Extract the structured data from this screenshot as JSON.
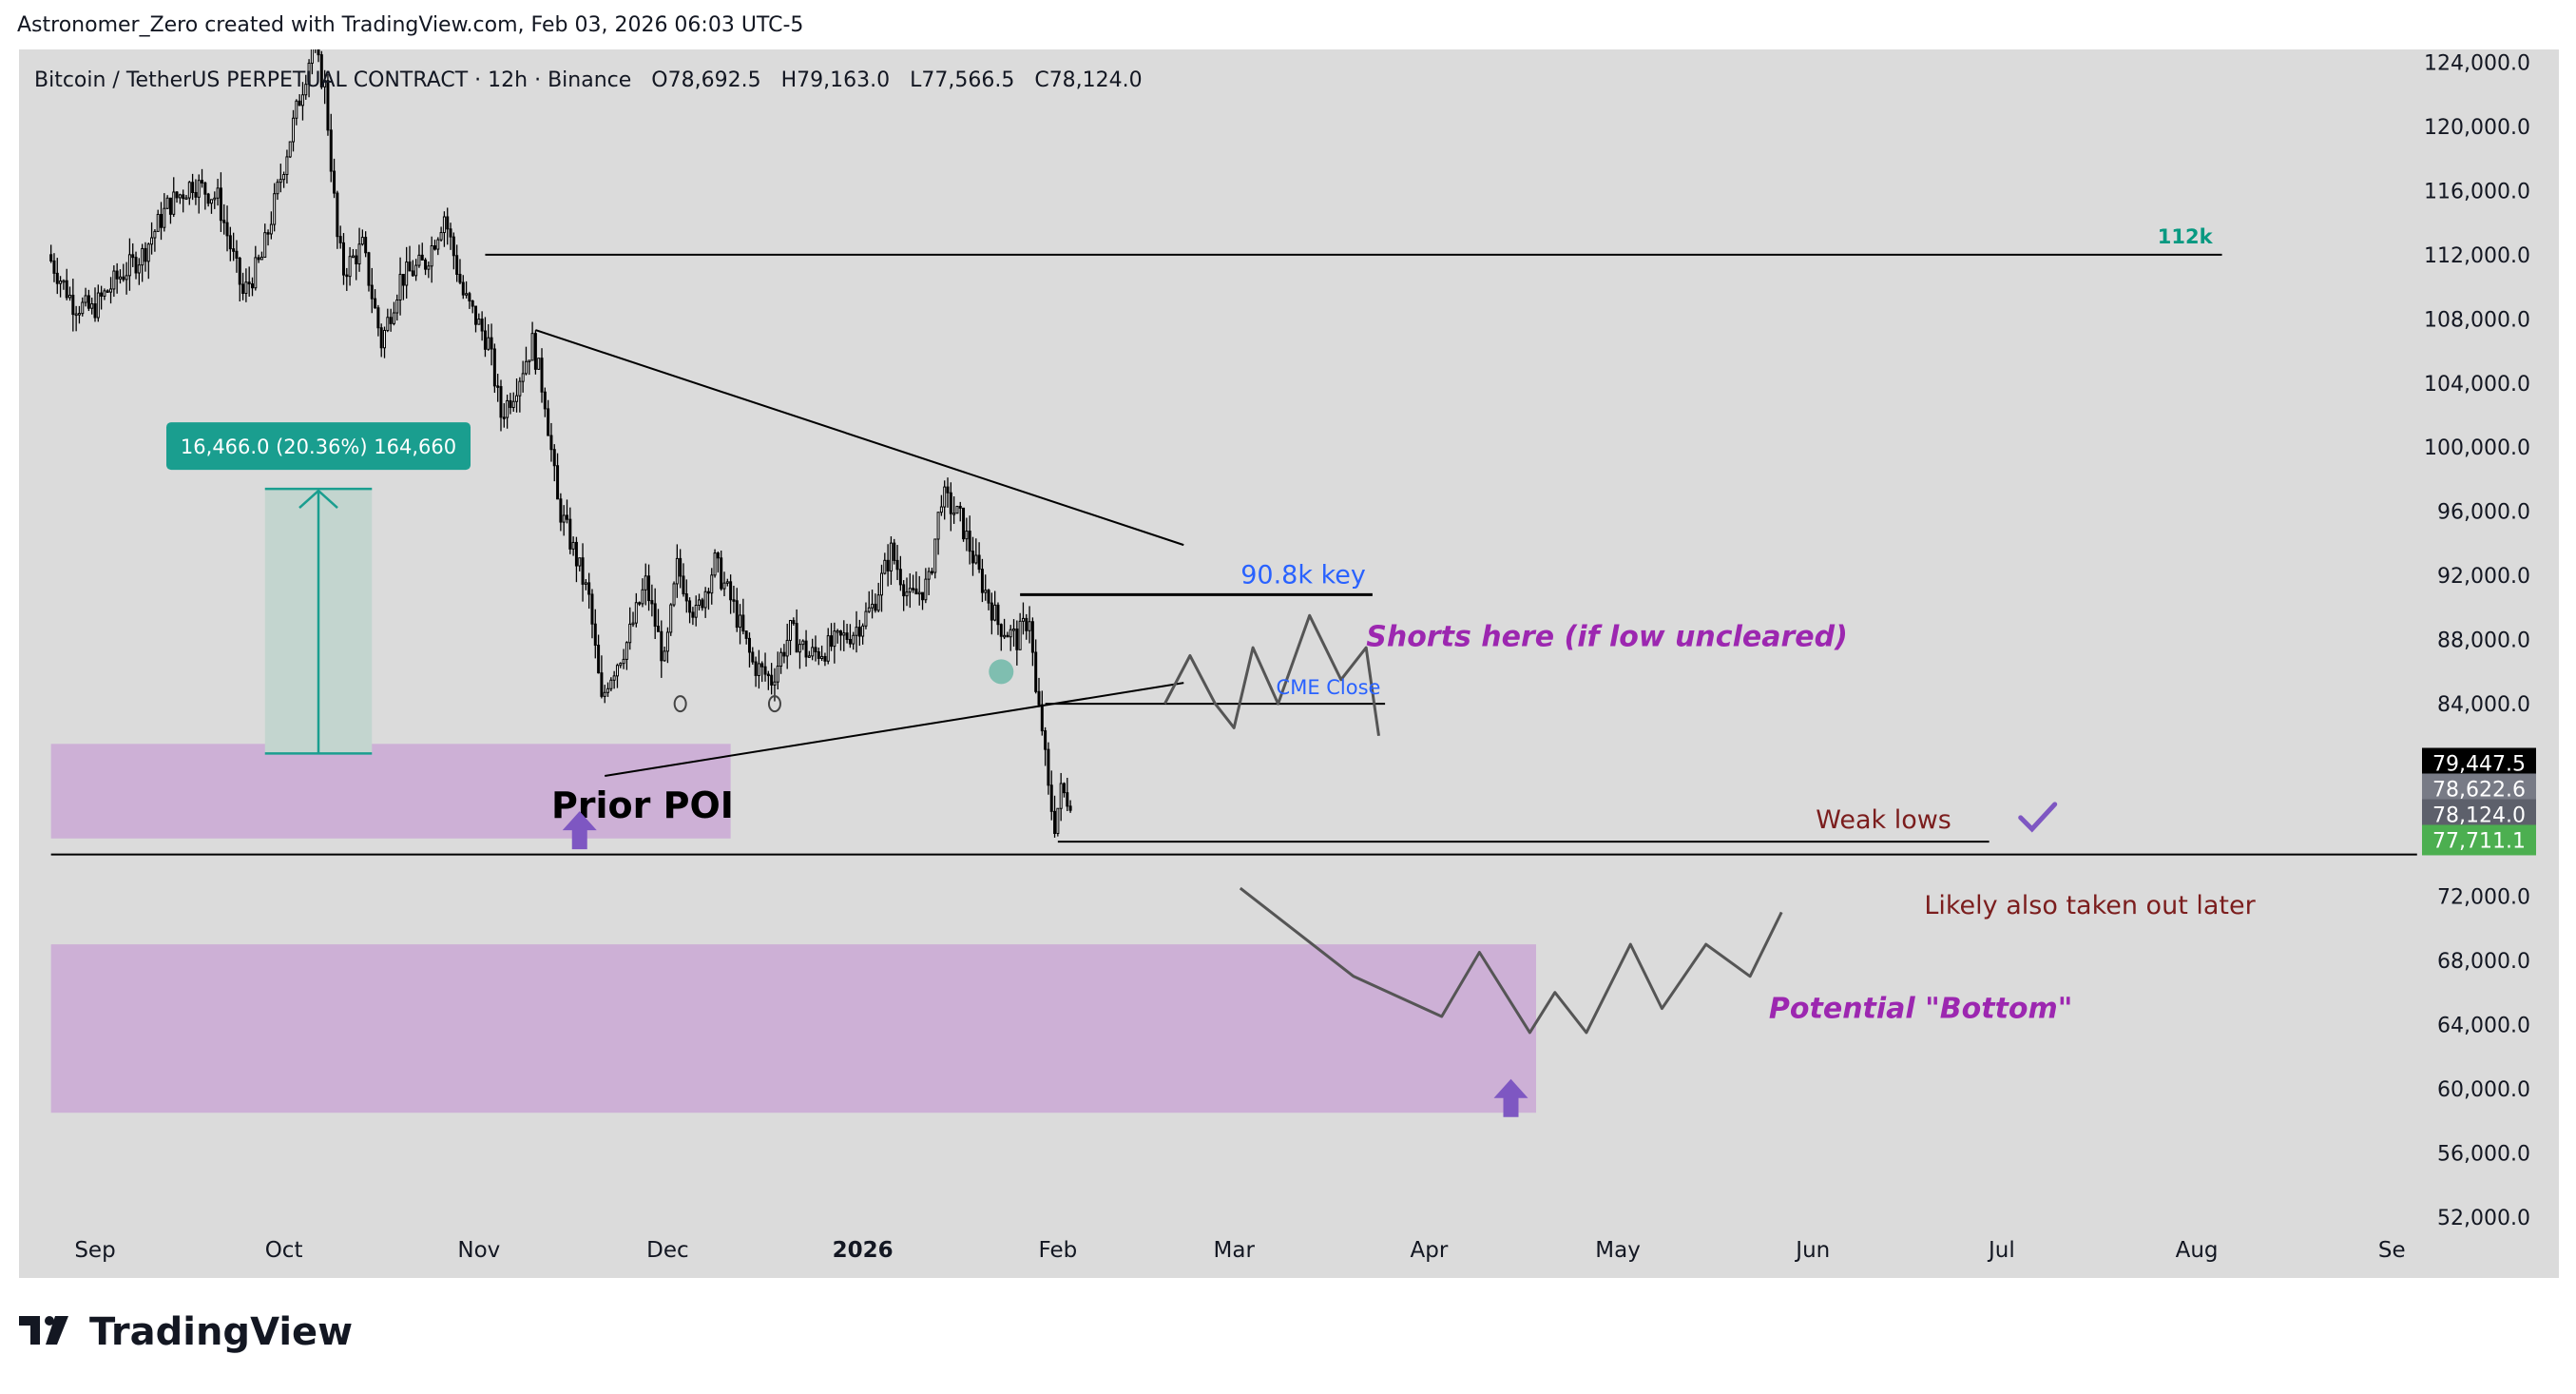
{
  "header": {
    "attribution": "Astronomer_Zero created with TradingView.com, Feb 03, 2026 06:03 UTC-5"
  },
  "brand": {
    "name": "TradingView",
    "logo_icon": "tradingview-logo-icon"
  },
  "chart_data": {
    "type": "candlestick",
    "symbol": "Bitcoin / TetherUS PERPETUAL CONTRACT",
    "interval": "12h",
    "exchange": "Binance",
    "legend_text": "Bitcoin / TetherUS PERPETUAL CONTRACT · 12h · Binance",
    "ohlc": {
      "open": "O78,692.5",
      "high": "H79,163.0",
      "low": "L77,566.5",
      "close": "C78,124.0"
    },
    "x_ticks": [
      "Sep",
      "Oct",
      "Nov",
      "Dec",
      "2026",
      "Feb",
      "Mar",
      "Apr",
      "May",
      "Jun",
      "Jul",
      "Aug",
      "Se"
    ],
    "y_ticks": [
      124000,
      120000,
      116000,
      112000,
      108000,
      104000,
      100000,
      96000,
      92000,
      88000,
      84000,
      80000,
      76000,
      72000,
      68000,
      64000,
      60000,
      56000,
      52000
    ],
    "y_tick_labels": [
      "124,000.0",
      "120,000.0",
      "116,000.0",
      "112,000.0",
      "108,000.0",
      "104,000.0",
      "100,000.0",
      "96,000.0",
      "92,000.0",
      "88,000.0",
      "84,000.0",
      "",
      "",
      "72,000.0",
      "68,000.0",
      "64,000.0",
      "60,000.0",
      "56,000.0",
      "52,000.0"
    ],
    "ylim": [
      49500,
      124500
    ],
    "price_path": [
      [
        "2025-08-25",
        112000
      ],
      [
        "2025-08-29",
        109000
      ],
      [
        "2025-09-01",
        108500
      ],
      [
        "2025-09-05",
        110500
      ],
      [
        "2025-09-09",
        112000
      ],
      [
        "2025-09-13",
        115000
      ],
      [
        "2025-09-17",
        116500
      ],
      [
        "2025-09-21",
        115500
      ],
      [
        "2025-09-25",
        109500
      ],
      [
        "2025-09-28",
        111800
      ],
      [
        "2025-10-02",
        118500
      ],
      [
        "2025-10-06",
        125000
      ],
      [
        "2025-10-08",
        122500
      ],
      [
        "2025-10-10",
        113000
      ],
      [
        "2025-10-11",
        111000
      ],
      [
        "2025-10-14",
        112500
      ],
      [
        "2025-10-17",
        106500
      ],
      [
        "2025-10-20",
        110500
      ],
      [
        "2025-10-24",
        111500
      ],
      [
        "2025-10-27",
        114500
      ],
      [
        "2025-10-30",
        109500
      ],
      [
        "2025-11-03",
        106500
      ],
      [
        "2025-11-05",
        102000
      ],
      [
        "2025-11-07",
        103500
      ],
      [
        "2025-11-10",
        106500
      ],
      [
        "2025-11-12",
        103000
      ],
      [
        "2025-11-14",
        96500
      ],
      [
        "2025-11-17",
        93000
      ],
      [
        "2025-11-19",
        90500
      ],
      [
        "2025-11-21",
        84000
      ],
      [
        "2025-11-22",
        85500
      ],
      [
        "2025-11-25",
        87800
      ],
      [
        "2025-11-28",
        91500
      ],
      [
        "2025-12-01",
        86500
      ],
      [
        "2025-12-03",
        92500
      ],
      [
        "2025-12-06",
        89500
      ],
      [
        "2025-12-09",
        92800
      ],
      [
        "2025-12-12",
        90000
      ],
      [
        "2025-12-15",
        86500
      ],
      [
        "2025-12-18",
        85500
      ],
      [
        "2025-12-21",
        88500
      ],
      [
        "2025-12-24",
        87000
      ],
      [
        "2025-12-27",
        87500
      ],
      [
        "2025-12-31",
        88500
      ],
      [
        "2026-01-03",
        90000
      ],
      [
        "2026-01-06",
        93500
      ],
      [
        "2026-01-09",
        90500
      ],
      [
        "2026-01-12",
        91500
      ],
      [
        "2026-01-14",
        97000
      ],
      [
        "2026-01-17",
        95500
      ],
      [
        "2026-01-20",
        92000
      ],
      [
        "2026-01-23",
        89000
      ],
      [
        "2026-01-26",
        88000
      ],
      [
        "2026-01-28",
        89500
      ],
      [
        "2026-01-29",
        84500
      ],
      [
        "2026-01-30",
        82500
      ],
      [
        "2026-01-31",
        78500
      ],
      [
        "2026-02-01",
        76500
      ],
      [
        "2026-02-02",
        78500
      ],
      [
        "2026-02-03",
        78124
      ]
    ],
    "horizontal_levels": [
      {
        "price": 112000,
        "from": "2025-11-02",
        "to": "2026-08-05",
        "label": "112k",
        "label_color": "#089981"
      },
      {
        "price": 90800,
        "from": "2026-01-26",
        "to": "2026-03-23",
        "label": "90.8k key",
        "label_color": "#2962ff"
      },
      {
        "price": 84000,
        "from": "2026-01-30",
        "to": "2026-03-25",
        "label": "CME Close",
        "label_color": "#2962ff"
      },
      {
        "price": 75400,
        "from": "2026-02-01",
        "to": "2026-06-29",
        "label": "Weak lows",
        "label_color": "#7b1d1d"
      },
      {
        "price": 74600,
        "from": "2025-08-25",
        "to": "2026-09-05",
        "label": "",
        "label_color": "#000000"
      }
    ],
    "trendlines": [
      {
        "from": [
          "2025-11-10",
          107300
        ],
        "to": [
          "2026-02-21",
          93900
        ]
      },
      {
        "from": [
          "2025-11-21",
          79500
        ],
        "to": [
          "2026-02-21",
          85300
        ]
      }
    ],
    "zones": [
      {
        "name": "Prior POI",
        "from": "2025-08-25",
        "to": "2025-12-11",
        "top": 81500,
        "bottom": 75600,
        "color": "#cdb0d6"
      },
      {
        "name": "Potential Bottom zone",
        "from": "2025-08-25",
        "to": "2026-04-18",
        "top": 69000,
        "bottom": 58500,
        "color": "#cdb0d6"
      }
    ],
    "measurement": {
      "label": "16,466.0 (20.36%) 164,660",
      "from": "2025-09-28",
      "to": "2025-10-15",
      "low": 80900,
      "high": 97400
    },
    "projections": [
      {
        "name": "shorts-projection",
        "points": [
          [
            "2026-02-18",
            84000
          ],
          [
            "2026-02-22",
            87000
          ],
          [
            "2026-02-26",
            84000
          ],
          [
            "2026-03-01",
            82500
          ],
          [
            "2026-03-04",
            87500
          ],
          [
            "2026-03-08",
            84000
          ],
          [
            "2026-03-13",
            89500
          ],
          [
            "2026-03-18",
            85500
          ],
          [
            "2026-03-22",
            87500
          ],
          [
            "2026-03-24",
            82000
          ]
        ]
      },
      {
        "name": "bottom-projection",
        "points": [
          [
            "2026-03-02",
            72500
          ],
          [
            "2026-03-20",
            67000
          ],
          [
            "2026-04-03",
            64500
          ],
          [
            "2026-04-09",
            68500
          ],
          [
            "2026-04-17",
            63500
          ],
          [
            "2026-04-21",
            66000
          ],
          [
            "2026-04-26",
            63500
          ],
          [
            "2026-05-03",
            69000
          ],
          [
            "2026-05-08",
            65000
          ],
          [
            "2026-05-15",
            69000
          ],
          [
            "2026-05-22",
            67000
          ],
          [
            "2026-05-27",
            71000
          ]
        ]
      }
    ],
    "annotations": {
      "prior_poi": "Prior POI",
      "shorts": "Shorts here (if low uncleared)",
      "likely": "Likely also taken out later",
      "potential_bottom": "Potential \"Bottom\""
    },
    "price_labels": [
      {
        "text": "79,447.5",
        "bg": "#000000"
      },
      {
        "text": "78,622.6",
        "bg": "#787b86"
      },
      {
        "text": "78,124.0",
        "bg": "#5d606b"
      },
      {
        "text": "77,711.1",
        "bg": "#4caf50"
      }
    ],
    "colors": {
      "background": "#dbdbdb",
      "candle": "#000000",
      "zone": "#cdb0d6",
      "arrow": "#7e57c2",
      "annotation_purple": "#9c27b0",
      "annotation_red": "#7b1d1d",
      "measure_teal": "#1a9e8f"
    },
    "icons": [
      "up-arrow-icon",
      "checkmark-icon"
    ]
  }
}
